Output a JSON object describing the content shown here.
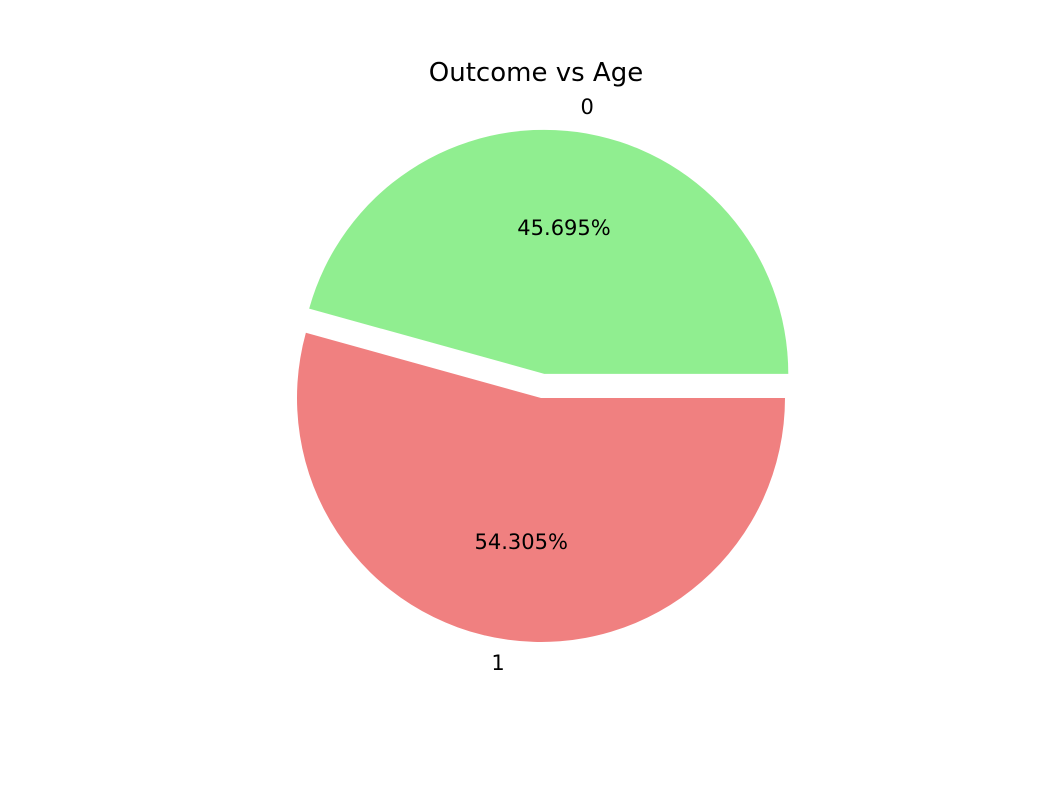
{
  "chart_data": {
    "type": "pie",
    "title": "Outcome vs Age",
    "slices": [
      {
        "label": "0",
        "value": 45.695,
        "percent_label": "45.695%",
        "color": "#90ee90",
        "explode": 0.1
      },
      {
        "label": "1",
        "value": 54.305,
        "percent_label": "54.305%",
        "color": "#f08080",
        "explode": 0
      }
    ],
    "start_angle_deg": 0,
    "direction": "counterclockwise",
    "legend": "none"
  }
}
